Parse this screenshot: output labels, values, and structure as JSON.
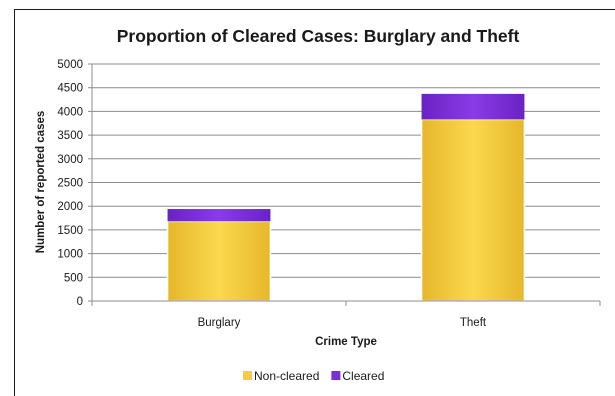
{
  "chart_data": {
    "type": "bar",
    "stacked": true,
    "title": "Proportion of Cleared Cases: Burglary and Theft",
    "xlabel": "Crime Type",
    "ylabel": "Number of reported cases",
    "categories": [
      "Burglary",
      "Theft"
    ],
    "series": [
      {
        "name": "Non-cleared",
        "values": [
          1680,
          3830
        ],
        "color": "#f5cd3f"
      },
      {
        "name": "Cleared",
        "values": [
          260,
          540
        ],
        "color": "#7b2fd6"
      }
    ],
    "ylim": [
      0,
      5000
    ],
    "yticks": [
      0,
      500,
      1000,
      1500,
      2000,
      2500,
      3000,
      3500,
      4000,
      4500,
      5000
    ],
    "grid": true,
    "legend_position": "bottom"
  }
}
